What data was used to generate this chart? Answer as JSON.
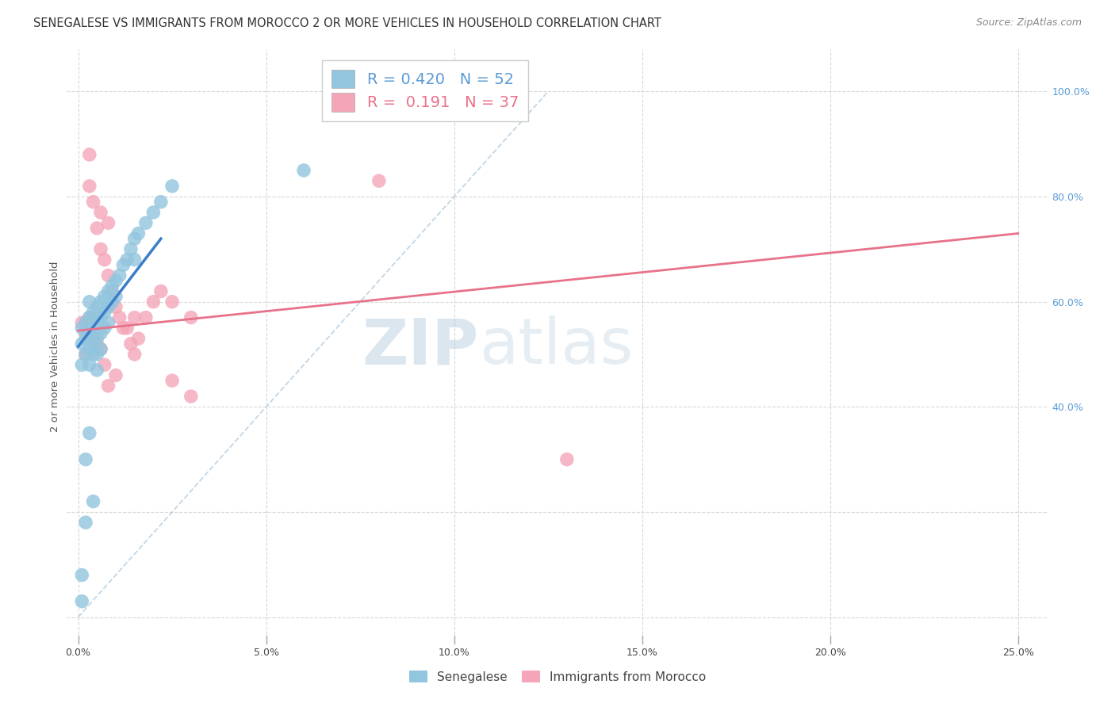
{
  "title": "SENEGALESE VS IMMIGRANTS FROM MOROCCO 2 OR MORE VEHICLES IN HOUSEHOLD CORRELATION CHART",
  "source": "Source: ZipAtlas.com",
  "xlabel_ticks": [
    "0.0%",
    "5.0%",
    "10.0%",
    "15.0%",
    "20.0%",
    "25.0%"
  ],
  "xlabel_vals": [
    0.0,
    0.05,
    0.1,
    0.15,
    0.2,
    0.25
  ],
  "ylabel_right_ticks": [
    "100.0%",
    "80.0%",
    "60.0%",
    "40.0%"
  ],
  "ylabel_right_vals": [
    1.0,
    0.8,
    0.6,
    0.4
  ],
  "ylabel_label": "2 or more Vehicles in Household",
  "legend_blue_label": "Senegalese",
  "legend_pink_label": "Immigrants from Morocco",
  "R_blue": 0.42,
  "N_blue": 52,
  "R_pink": 0.191,
  "N_pink": 37,
  "blue_color": "#92c5de",
  "pink_color": "#f4a6b8",
  "blue_line_color": "#3a7dc9",
  "pink_line_color": "#e8728a",
  "diag_color": "#b8cfe0",
  "watermark_zip": "ZIP",
  "watermark_atlas": "atlas",
  "grid_color": "#d8d8d8",
  "bg_color": "#ffffff",
  "title_fontsize": 10.5,
  "tick_fontsize": 9,
  "legend_fontsize": 14,
  "source_fontsize": 9,
  "blue_dots_x": [
    0.001,
    0.001,
    0.001,
    0.001,
    0.002,
    0.002,
    0.002,
    0.002,
    0.002,
    0.003,
    0.003,
    0.003,
    0.003,
    0.003,
    0.003,
    0.004,
    0.004,
    0.004,
    0.004,
    0.005,
    0.005,
    0.005,
    0.005,
    0.005,
    0.006,
    0.006,
    0.006,
    0.006,
    0.007,
    0.007,
    0.007,
    0.008,
    0.008,
    0.008,
    0.009,
    0.009,
    0.01,
    0.01,
    0.011,
    0.012,
    0.013,
    0.014,
    0.015,
    0.015,
    0.016,
    0.018,
    0.02,
    0.022,
    0.025,
    0.06,
    0.001,
    0.004
  ],
  "blue_dots_y": [
    0.55,
    0.52,
    0.48,
    0.08,
    0.56,
    0.53,
    0.5,
    0.3,
    0.18,
    0.57,
    0.54,
    0.51,
    0.48,
    0.6,
    0.35,
    0.58,
    0.55,
    0.52,
    0.5,
    0.59,
    0.56,
    0.53,
    0.5,
    0.47,
    0.6,
    0.57,
    0.54,
    0.51,
    0.61,
    0.58,
    0.55,
    0.62,
    0.59,
    0.56,
    0.63,
    0.6,
    0.64,
    0.61,
    0.65,
    0.67,
    0.68,
    0.7,
    0.72,
    0.68,
    0.73,
    0.75,
    0.77,
    0.79,
    0.82,
    0.85,
    0.03,
    0.22
  ],
  "pink_dots_x": [
    0.001,
    0.002,
    0.002,
    0.003,
    0.003,
    0.004,
    0.004,
    0.005,
    0.005,
    0.006,
    0.006,
    0.007,
    0.007,
    0.008,
    0.008,
    0.009,
    0.01,
    0.01,
    0.011,
    0.012,
    0.013,
    0.014,
    0.015,
    0.015,
    0.016,
    0.018,
    0.02,
    0.022,
    0.025,
    0.025,
    0.03,
    0.03,
    0.08,
    0.13,
    0.003,
    0.006,
    0.008
  ],
  "pink_dots_y": [
    0.56,
    0.54,
    0.5,
    0.88,
    0.57,
    0.79,
    0.53,
    0.74,
    0.52,
    0.7,
    0.51,
    0.68,
    0.48,
    0.65,
    0.44,
    0.62,
    0.59,
    0.46,
    0.57,
    0.55,
    0.55,
    0.52,
    0.57,
    0.5,
    0.53,
    0.57,
    0.6,
    0.62,
    0.6,
    0.45,
    0.42,
    0.57,
    0.83,
    0.3,
    0.82,
    0.77,
    0.75
  ],
  "xlim": [
    -0.003,
    0.258
  ],
  "ylim": [
    -0.05,
    1.08
  ],
  "blue_line_x": [
    0.0,
    0.022
  ],
  "blue_line_y": [
    0.515,
    0.72
  ],
  "pink_line_x": [
    0.0,
    0.25
  ],
  "pink_line_y": [
    0.545,
    0.73
  ],
  "diag_line_x": [
    0.0,
    0.125
  ],
  "diag_line_y": [
    0.0,
    1.0
  ]
}
